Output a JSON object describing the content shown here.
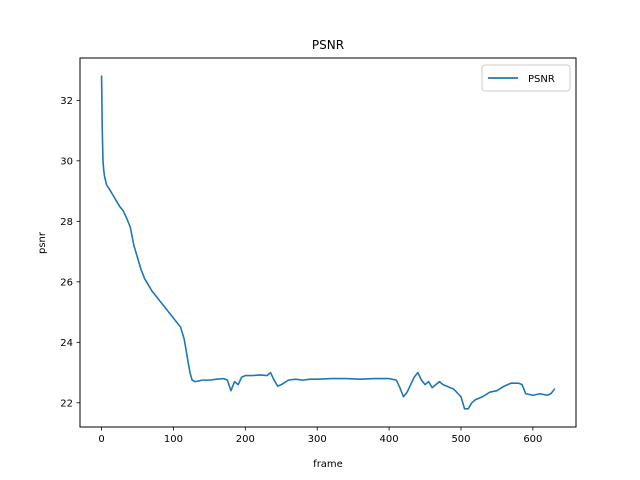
{
  "chart_data": {
    "type": "line",
    "title": "PSNR",
    "xlabel": "frame",
    "ylabel": "psnr",
    "xlim": [
      -30,
      660
    ],
    "ylim": [
      21.2,
      33.4
    ],
    "xticks": [
      0,
      100,
      200,
      300,
      400,
      500,
      600
    ],
    "yticks": [
      22,
      24,
      26,
      28,
      30,
      32
    ],
    "grid": false,
    "legend_position": "top-right",
    "series": [
      {
        "name": "PSNR",
        "color": "#1f77b4",
        "x": [
          0,
          1,
          2,
          3,
          4,
          5,
          7,
          10,
          15,
          20,
          25,
          30,
          35,
          40,
          45,
          50,
          55,
          60,
          65,
          70,
          80,
          90,
          100,
          110,
          115,
          120,
          123,
          126,
          130,
          135,
          140,
          150,
          160,
          170,
          175,
          180,
          185,
          190,
          195,
          200,
          210,
          220,
          230,
          235,
          240,
          245,
          250,
          260,
          270,
          280,
          290,
          300,
          320,
          340,
          360,
          380,
          400,
          410,
          415,
          420,
          425,
          430,
          435,
          440,
          445,
          450,
          455,
          460,
          465,
          470,
          475,
          480,
          490,
          500,
          505,
          510,
          515,
          520,
          530,
          540,
          550,
          560,
          570,
          580,
          585,
          590,
          600,
          610,
          620,
          625,
          630
        ],
        "values": [
          32.8,
          31.0,
          30.0,
          29.7,
          29.5,
          29.4,
          29.2,
          29.1,
          28.9,
          28.7,
          28.5,
          28.35,
          28.1,
          27.8,
          27.2,
          26.8,
          26.4,
          26.1,
          25.9,
          25.7,
          25.4,
          25.1,
          24.8,
          24.5,
          24.1,
          23.4,
          23.0,
          22.75,
          22.7,
          22.72,
          22.75,
          22.75,
          22.78,
          22.8,
          22.75,
          22.4,
          22.7,
          22.6,
          22.85,
          22.9,
          22.9,
          22.92,
          22.9,
          23.0,
          22.75,
          22.55,
          22.6,
          22.75,
          22.78,
          22.75,
          22.78,
          22.78,
          22.8,
          22.8,
          22.78,
          22.8,
          22.8,
          22.75,
          22.5,
          22.2,
          22.35,
          22.6,
          22.85,
          23.0,
          22.75,
          22.6,
          22.7,
          22.5,
          22.6,
          22.7,
          22.6,
          22.55,
          22.45,
          22.2,
          21.8,
          21.8,
          22.0,
          22.1,
          22.2,
          22.35,
          22.4,
          22.55,
          22.65,
          22.65,
          22.6,
          22.3,
          22.25,
          22.3,
          22.25,
          22.3,
          22.45
        ]
      }
    ]
  }
}
